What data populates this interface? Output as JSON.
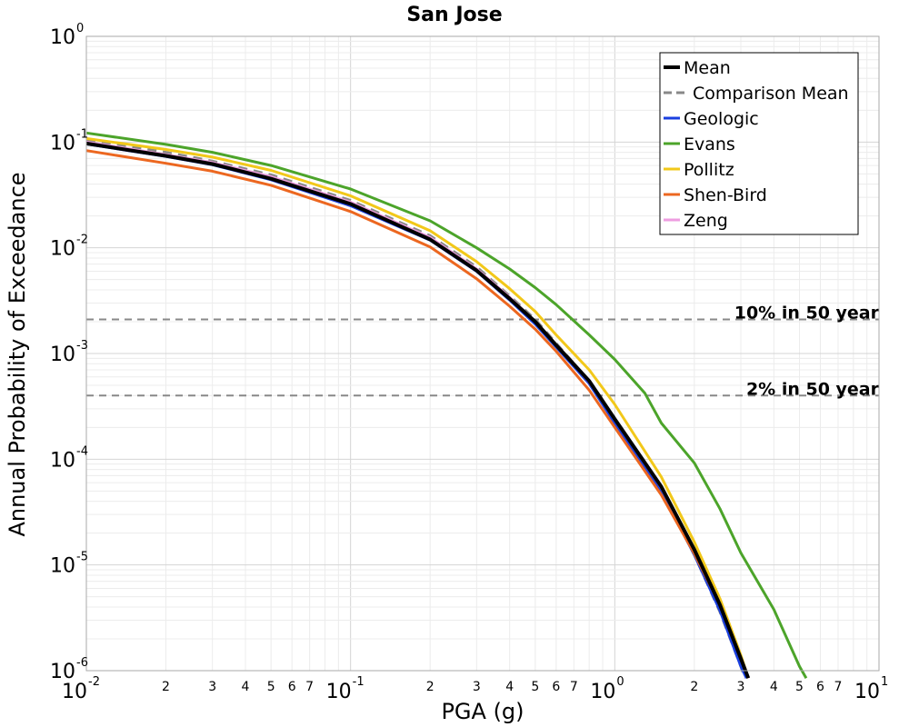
{
  "chart_data": {
    "type": "line",
    "title": "San Jose",
    "xlabel": "PGA (g)",
    "ylabel": "Annual Probability of Exceedance",
    "xscale": "log",
    "yscale": "log",
    "xlim": [
      0.01,
      10
    ],
    "ylim": [
      1e-06,
      1
    ],
    "grid": true,
    "legend_position": "top-right",
    "x_major_ticks": [
      {
        "value": 0.01,
        "base": "10",
        "exp": "-2"
      },
      {
        "value": 0.1,
        "base": "10",
        "exp": "-1"
      },
      {
        "value": 1,
        "base": "10",
        "exp": "0"
      },
      {
        "value": 10,
        "base": "10",
        "exp": "1"
      }
    ],
    "y_major_ticks": [
      {
        "value": 1,
        "base": "10",
        "exp": "0"
      },
      {
        "value": 0.1,
        "base": "10",
        "exp": "-1"
      },
      {
        "value": 0.01,
        "base": "10",
        "exp": "-2"
      },
      {
        "value": 0.001,
        "base": "10",
        "exp": "-3"
      },
      {
        "value": 0.0001,
        "base": "10",
        "exp": "-4"
      },
      {
        "value": 1e-05,
        "base": "10",
        "exp": "-5"
      },
      {
        "value": 1e-06,
        "base": "10",
        "exp": "-6"
      }
    ],
    "x_minor_tick_labels": [
      "2",
      "3",
      "4",
      "5",
      "6",
      "7"
    ],
    "reference_lines": [
      {
        "label": "10% in 50 year",
        "y": 0.0021,
        "color": "#888888"
      },
      {
        "label": "2% in 50 year",
        "y": 0.0004,
        "color": "#888888"
      }
    ],
    "series": [
      {
        "name": "Mean",
        "color": "#000000",
        "width": 4,
        "dash": "",
        "x": [
          0.01,
          0.02,
          0.03,
          0.05,
          0.1,
          0.2,
          0.3,
          0.4,
          0.5,
          0.6,
          0.8,
          1.0,
          1.5,
          2.0,
          2.5,
          3.0,
          3.2
        ],
        "y": [
          0.097,
          0.074,
          0.062,
          0.045,
          0.026,
          0.012,
          0.0061,
          0.0033,
          0.002,
          0.0012,
          0.00055,
          0.00024,
          5.5e-05,
          1.4e-05,
          4.2e-06,
          1.3e-06,
          8.5e-07
        ]
      },
      {
        "name": "Comparison Mean",
        "color": "#888888",
        "width": 3,
        "dash": "10,7",
        "x": [
          0.01,
          0.02,
          0.03,
          0.05,
          0.1,
          0.2,
          0.3,
          0.4,
          0.5,
          0.6,
          0.8,
          1.0,
          1.5,
          2.0,
          2.5,
          3.0,
          3.1
        ],
        "y": [
          0.104,
          0.08,
          0.066,
          0.049,
          0.028,
          0.013,
          0.0066,
          0.0035,
          0.0021,
          0.00125,
          0.00055,
          0.00023,
          5e-05,
          1.25e-05,
          3.6e-06,
          1.1e-06,
          8.5e-07
        ]
      },
      {
        "name": "Geologic",
        "color": "#1a3fe0",
        "width": 3,
        "dash": "",
        "x": [
          0.01,
          0.02,
          0.03,
          0.05,
          0.1,
          0.2,
          0.3,
          0.4,
          0.5,
          0.6,
          0.8,
          1.0,
          1.5,
          2.0,
          2.5,
          3.0,
          3.15
        ],
        "y": [
          0.096,
          0.073,
          0.061,
          0.044,
          0.025,
          0.0118,
          0.006,
          0.0032,
          0.0019,
          0.00115,
          0.00052,
          0.00022,
          5e-05,
          1.25e-05,
          3.7e-06,
          1.1e-06,
          8.5e-07
        ]
      },
      {
        "name": "Evans",
        "color": "#4ca42a",
        "width": 3,
        "dash": "",
        "x": [
          0.01,
          0.02,
          0.03,
          0.05,
          0.1,
          0.2,
          0.3,
          0.4,
          0.5,
          0.6,
          0.8,
          1.0,
          1.3,
          1.5,
          2.0,
          2.5,
          3.0,
          4.0,
          5.0,
          5.3
        ],
        "y": [
          0.122,
          0.095,
          0.08,
          0.06,
          0.036,
          0.018,
          0.01,
          0.0063,
          0.0042,
          0.0029,
          0.0015,
          0.00088,
          0.00042,
          0.00022,
          9.22e-05,
          3.4e-05,
          1.3e-05,
          3.8e-06,
          1.1e-06,
          8.5e-07
        ]
      },
      {
        "name": "Pollitz",
        "color": "#f2c81a",
        "width": 3,
        "dash": "",
        "x": [
          0.01,
          0.02,
          0.03,
          0.05,
          0.1,
          0.2,
          0.3,
          0.4,
          0.5,
          0.6,
          0.8,
          1.0,
          1.5,
          2.0,
          2.5,
          3.0,
          3.2
        ],
        "y": [
          0.108,
          0.085,
          0.072,
          0.054,
          0.031,
          0.0145,
          0.0074,
          0.0041,
          0.0025,
          0.0015,
          0.0007,
          0.00033,
          6.8e-05,
          1.65e-05,
          4.8e-06,
          1.4e-06,
          8.5e-07
        ]
      },
      {
        "name": "Shen-Bird",
        "color": "#ec6720",
        "width": 3,
        "dash": "",
        "x": [
          0.01,
          0.02,
          0.03,
          0.05,
          0.1,
          0.2,
          0.3,
          0.4,
          0.5,
          0.6,
          0.8,
          1.0,
          1.5,
          2.0,
          2.5,
          3.0,
          3.2
        ],
        "y": [
          0.083,
          0.063,
          0.053,
          0.039,
          0.022,
          0.0102,
          0.0051,
          0.0028,
          0.0017,
          0.00105,
          0.00045,
          0.0002,
          4.6e-05,
          1.28e-05,
          4.2e-06,
          1.3e-06,
          8.5e-07
        ]
      },
      {
        "name": "Zeng",
        "color": "#ee9de0",
        "width": 3,
        "dash": "",
        "x": [
          0.01,
          0.02,
          0.03,
          0.05,
          0.1,
          0.2,
          0.3,
          0.4,
          0.5,
          0.6,
          0.8,
          1.0,
          1.5,
          2.0,
          2.5,
          3.0,
          3.2
        ],
        "y": [
          0.1,
          0.076,
          0.064,
          0.047,
          0.027,
          0.0125,
          0.0063,
          0.0034,
          0.002,
          0.0012,
          0.00054,
          0.00024,
          5.4e-05,
          1.38e-05,
          4.2e-06,
          1.3e-06,
          8.5e-07
        ]
      }
    ]
  }
}
